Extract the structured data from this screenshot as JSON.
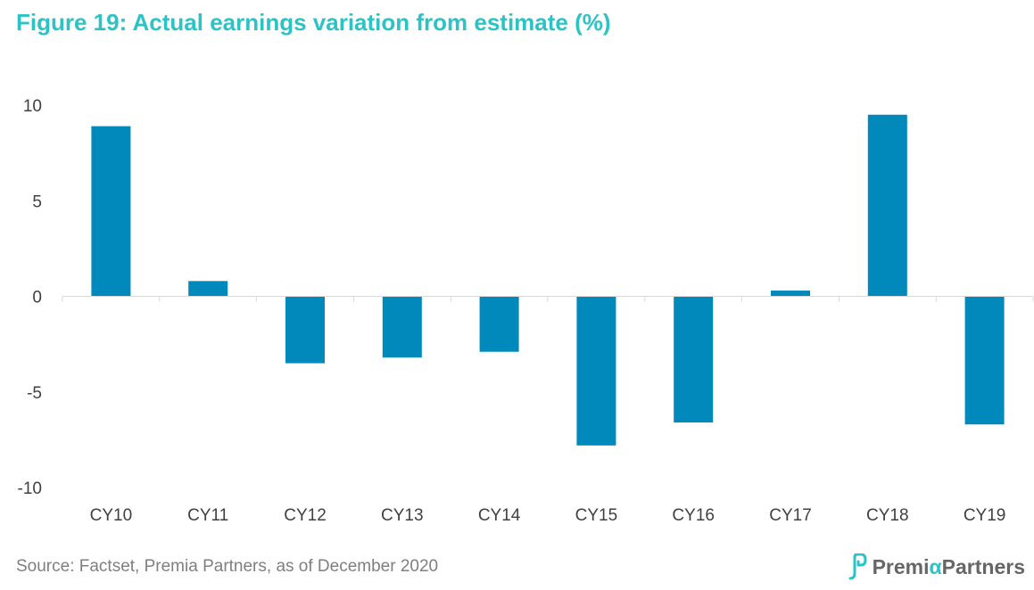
{
  "title": "Figure 19: Actual earnings variation from estimate (%)",
  "source": "Source: Factset, Premia Partners, as of December 2020",
  "logo": {
    "name_part1": "Premi",
    "name_alpha": "α",
    "name_part2": "Partners",
    "icon": "premia-partners-logo-mark"
  },
  "colors": {
    "title": "#2cc3c6",
    "bar": "#0089ba",
    "axis": "#d9d9d9",
    "text": "#404040"
  },
  "chart_data": {
    "type": "bar",
    "title": "Figure 19: Actual earnings variation from estimate (%)",
    "xlabel": "",
    "ylabel": "",
    "categories": [
      "CY10",
      "CY11",
      "CY12",
      "CY13",
      "CY14",
      "CY15",
      "CY16",
      "CY17",
      "CY18",
      "CY19"
    ],
    "values": [
      8.9,
      0.8,
      -3.5,
      -3.2,
      -2.9,
      -7.8,
      -6.6,
      0.3,
      9.5,
      -6.7
    ],
    "ylim": [
      -10,
      10
    ],
    "yticks": [
      10,
      5,
      0,
      -5,
      -10
    ],
    "grid": false,
    "legend": "none"
  }
}
